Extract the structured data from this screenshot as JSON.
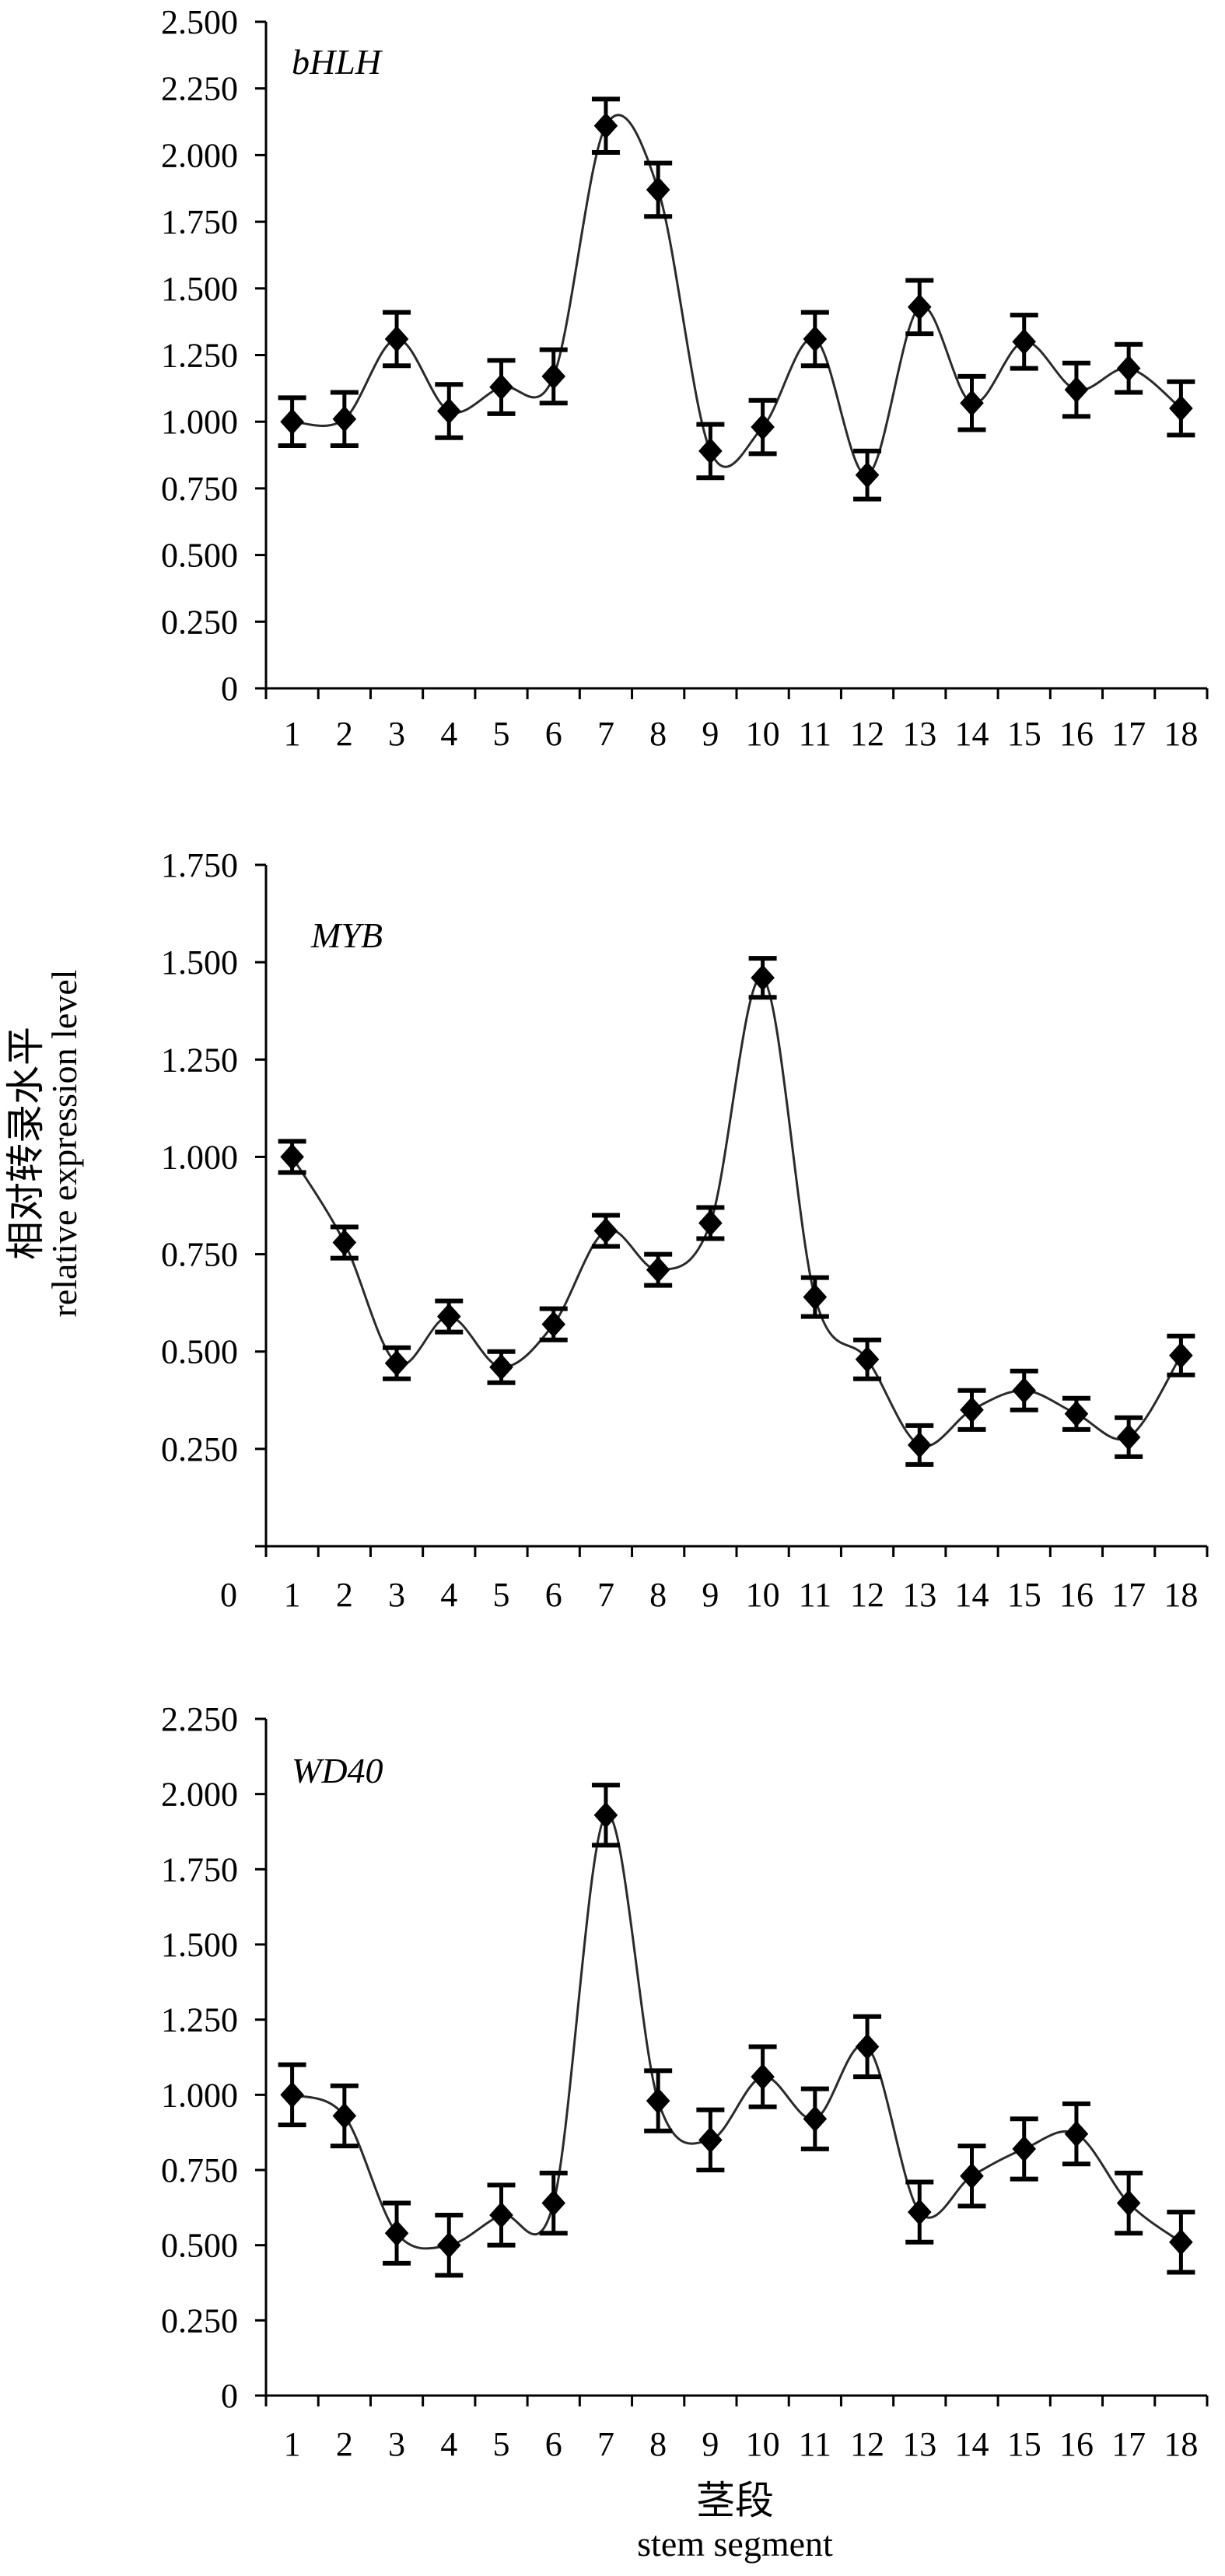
{
  "figure": {
    "ylabel_cn": "相对转录水平",
    "ylabel_en": "relative expression level",
    "xlabel_cn": "茎段",
    "xlabel_en": "stem segment"
  },
  "chart_data": [
    {
      "type": "line",
      "title": "bHLH",
      "xlabel": "茎段 stem segment",
      "ylabel": "相对转录水平 relative expression level",
      "categories": [
        "1",
        "2",
        "3",
        "4",
        "5",
        "6",
        "7",
        "8",
        "9",
        "10",
        "11",
        "12",
        "13",
        "14",
        "15",
        "16",
        "17",
        "18"
      ],
      "series": [
        {
          "values": [
            1.0,
            1.01,
            1.31,
            1.04,
            1.13,
            1.17,
            2.11,
            1.87,
            0.89,
            0.98,
            1.31,
            0.8,
            1.43,
            1.07,
            1.3,
            1.12,
            1.2,
            1.05
          ],
          "errors": [
            0.09,
            0.1,
            0.1,
            0.1,
            0.1,
            0.1,
            0.1,
            0.1,
            0.1,
            0.1,
            0.1,
            0.09,
            0.1,
            0.1,
            0.1,
            0.1,
            0.09,
            0.1
          ]
        }
      ],
      "ylim": [
        0,
        2.5
      ],
      "yticks": [
        0,
        0.25,
        0.5,
        0.75,
        1.0,
        1.25,
        1.5,
        1.75,
        2.0,
        2.25,
        2.5
      ],
      "ytick_labels": [
        "0",
        "0.250",
        "0.500",
        "0.750",
        "1.000",
        "1.250",
        "1.500",
        "1.750",
        "2.000",
        "2.250",
        "2.500"
      ],
      "grid": false,
      "legend": "none"
    },
    {
      "type": "line",
      "title": "MYB",
      "xlabel": "茎段 stem segment",
      "ylabel": "相对转录水平 relative expression level",
      "categories": [
        "1",
        "2",
        "3",
        "4",
        "5",
        "6",
        "7",
        "8",
        "9",
        "10",
        "11",
        "12",
        "13",
        "14",
        "15",
        "16",
        "17",
        "18"
      ],
      "series": [
        {
          "values": [
            1.0,
            0.78,
            0.47,
            0.59,
            0.46,
            0.57,
            0.81,
            0.71,
            0.83,
            1.46,
            0.64,
            0.48,
            0.26,
            0.35,
            0.4,
            0.34,
            0.28,
            0.49
          ],
          "errors": [
            0.04,
            0.04,
            0.04,
            0.04,
            0.04,
            0.04,
            0.04,
            0.04,
            0.04,
            0.05,
            0.05,
            0.05,
            0.05,
            0.05,
            0.05,
            0.04,
            0.05,
            0.05
          ]
        }
      ],
      "ylim": [
        0,
        1.75
      ],
      "yticks": [
        0,
        0.25,
        0.5,
        0.75,
        1.0,
        1.25,
        1.5,
        1.75
      ],
      "ytick_labels": [
        "0",
        "0.250",
        "0.500",
        "0.750",
        "1.000",
        "1.250",
        "1.500",
        "1.750"
      ],
      "grid": false,
      "legend": "none"
    },
    {
      "type": "line",
      "title": "WD40",
      "xlabel": "茎段 stem segment",
      "ylabel": "相对转录水平 relative expression level",
      "categories": [
        "1",
        "2",
        "3",
        "4",
        "5",
        "6",
        "7",
        "8",
        "9",
        "10",
        "11",
        "12",
        "13",
        "14",
        "15",
        "16",
        "17",
        "18"
      ],
      "series": [
        {
          "values": [
            1.0,
            0.93,
            0.54,
            0.5,
            0.6,
            0.64,
            1.93,
            0.98,
            0.85,
            1.06,
            0.92,
            1.16,
            0.61,
            0.73,
            0.82,
            0.87,
            0.64,
            0.51
          ],
          "errors": [
            0.1,
            0.1,
            0.1,
            0.1,
            0.1,
            0.1,
            0.1,
            0.1,
            0.1,
            0.1,
            0.1,
            0.1,
            0.1,
            0.1,
            0.1,
            0.1,
            0.1,
            0.1
          ]
        }
      ],
      "ylim": [
        0,
        2.25
      ],
      "yticks": [
        0,
        0.25,
        0.5,
        0.75,
        1.0,
        1.25,
        1.5,
        1.75,
        2.0,
        2.25
      ],
      "ytick_labels": [
        "0",
        "0.250",
        "0.500",
        "0.750",
        "1.000",
        "1.250",
        "1.500",
        "1.750",
        "2.000",
        "2.250"
      ],
      "grid": false,
      "legend": "none"
    }
  ]
}
